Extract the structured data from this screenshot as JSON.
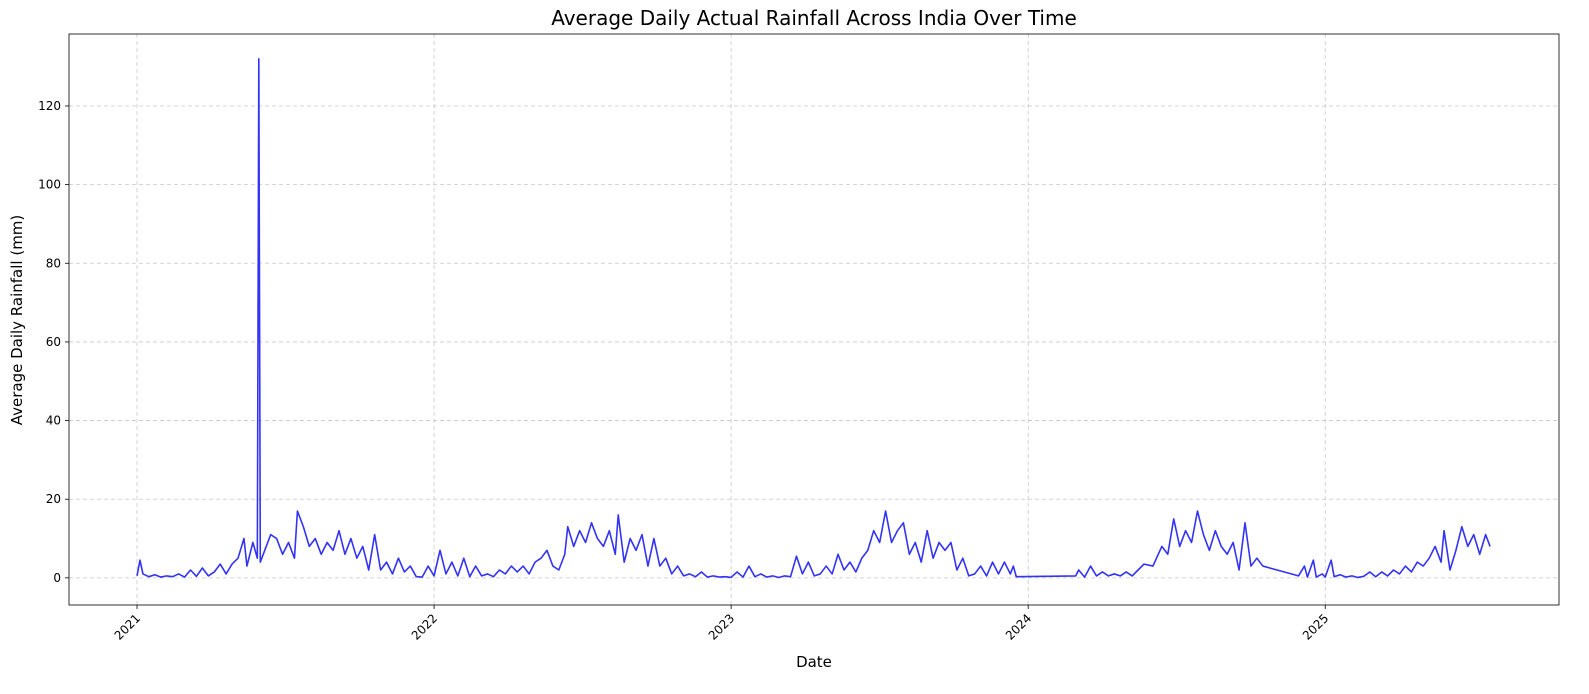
{
  "chart_data": {
    "type": "line",
    "title": "Average Daily Actual Rainfall Across India Over Time",
    "xlabel": "Date",
    "ylabel": "Average Daily Rainfall (mm)",
    "xlim": [
      2020.771,
      2025.787
    ],
    "xticks": [
      2021,
      2022,
      2023,
      2024,
      2025
    ],
    "ylim": [
      -6.9,
      138.3
    ],
    "yticks": [
      0,
      20,
      40,
      60,
      80,
      100,
      120
    ],
    "grid": true,
    "x": [
      2021.0,
      2021.01,
      2021.02,
      2021.04,
      2021.06,
      2021.08,
      2021.1,
      2021.12,
      2021.14,
      2021.16,
      2021.18,
      2021.2,
      2021.22,
      2021.24,
      2021.26,
      2021.28,
      2021.3,
      2021.32,
      2021.34,
      2021.36,
      2021.37,
      2021.39,
      2021.405,
      2021.41,
      2021.415,
      2021.43,
      2021.45,
      2021.47,
      2021.49,
      2021.51,
      2021.53,
      2021.54,
      2021.56,
      2021.58,
      2021.6,
      2021.62,
      2021.64,
      2021.66,
      2021.68,
      2021.7,
      2021.72,
      2021.74,
      2021.76,
      2021.78,
      2021.8,
      2021.82,
      2021.84,
      2021.86,
      2021.88,
      2021.9,
      2021.92,
      2021.94,
      2021.96,
      2021.98,
      2022.0,
      2022.02,
      2022.04,
      2022.06,
      2022.08,
      2022.1,
      2022.12,
      2022.14,
      2022.16,
      2022.18,
      2022.2,
      2022.22,
      2022.24,
      2022.26,
      2022.28,
      2022.3,
      2022.32,
      2022.34,
      2022.36,
      2022.38,
      2022.4,
      2022.42,
      2022.44,
      2022.45,
      2022.47,
      2022.49,
      2022.51,
      2022.53,
      2022.55,
      2022.57,
      2022.59,
      2022.61,
      2022.62,
      2022.64,
      2022.66,
      2022.68,
      2022.7,
      2022.72,
      2022.74,
      2022.76,
      2022.78,
      2022.8,
      2022.82,
      2022.84,
      2022.86,
      2022.88,
      2022.9,
      2022.92,
      2022.94,
      2022.96,
      2022.98,
      2023.0,
      2023.02,
      2023.04,
      2023.06,
      2023.08,
      2023.1,
      2023.12,
      2023.14,
      2023.16,
      2023.18,
      2023.2,
      2023.22,
      2023.24,
      2023.26,
      2023.28,
      2023.3,
      2023.32,
      2023.34,
      2023.36,
      2023.38,
      2023.4,
      2023.42,
      2023.44,
      2023.46,
      2023.48,
      2023.5,
      2023.52,
      2023.54,
      2023.56,
      2023.58,
      2023.6,
      2023.62,
      2023.64,
      2023.66,
      2023.68,
      2023.7,
      2023.72,
      2023.74,
      2023.76,
      2023.78,
      2023.8,
      2023.82,
      2023.84,
      2023.86,
      2023.88,
      2023.9,
      2023.92,
      2023.94,
      2023.95,
      2023.96,
      2024.16,
      2024.17,
      2024.19,
      2024.21,
      2024.23,
      2024.25,
      2024.27,
      2024.29,
      2024.31,
      2024.33,
      2024.35,
      2024.37,
      2024.39,
      2024.42,
      2024.45,
      2024.47,
      2024.49,
      2024.51,
      2024.53,
      2024.55,
      2024.57,
      2024.59,
      2024.61,
      2024.63,
      2024.65,
      2024.67,
      2024.69,
      2024.71,
      2024.73,
      2024.75,
      2024.77,
      2024.79,
      2024.91,
      2024.93,
      2024.94,
      2024.96,
      2024.97,
      2024.99,
      2025.0,
      2025.02,
      2025.03,
      2025.05,
      2025.07,
      2025.09,
      2025.11,
      2025.13,
      2025.15,
      2025.17,
      2025.19,
      2025.21,
      2025.23,
      2025.25,
      2025.27,
      2025.29,
      2025.31,
      2025.33,
      2025.35,
      2025.37,
      2025.39,
      2025.4,
      2025.42,
      2025.44,
      2025.46,
      2025.48,
      2025.5,
      2025.52,
      2025.54,
      2025.555
    ],
    "series": [
      {
        "color": "#3333f5",
        "values": [
          0.5,
          4.5,
          1,
          0.3,
          0.8,
          0.2,
          0.5,
          0.3,
          1,
          0.2,
          2,
          0.4,
          2.5,
          0.5,
          1.5,
          3.5,
          1,
          3.5,
          5,
          10,
          3,
          9,
          5,
          132,
          4,
          7,
          11,
          10,
          6,
          9,
          5,
          17,
          13,
          8,
          10,
          6,
          9,
          7,
          12,
          6,
          10,
          5,
          8,
          2,
          11,
          2,
          4,
          1,
          5,
          1.5,
          3,
          0.3,
          0.2,
          3,
          0.5,
          7,
          1,
          4,
          0.5,
          5,
          0.3,
          3,
          0.5,
          1,
          0.3,
          2,
          1,
          3,
          1.5,
          3,
          1,
          4,
          5,
          7,
          3,
          2,
          6,
          13,
          8,
          12,
          9,
          14,
          10,
          8,
          12,
          6,
          16,
          4,
          10,
          7,
          11,
          3,
          10,
          3,
          5,
          1,
          3,
          0.5,
          1,
          0.3,
          1.5,
          0.2,
          0.5,
          0.2,
          0.3,
          0.1,
          1.5,
          0.2,
          3,
          0.3,
          1,
          0.2,
          0.5,
          0.1,
          0.5,
          0.3,
          5.5,
          1,
          4,
          0.5,
          1,
          3,
          1,
          6,
          2,
          4,
          1.5,
          5,
          7,
          12,
          9,
          17,
          9,
          12,
          14,
          6,
          9,
          4,
          12,
          5,
          9,
          7,
          9,
          2,
          5,
          0.5,
          1,
          3,
          0.5,
          4,
          1,
          4,
          1,
          3,
          0.3,
          0.5,
          2,
          0.2,
          3,
          0.5,
          1.5,
          0.5,
          1,
          0.5,
          1.5,
          0.5,
          2,
          3.5,
          3,
          8,
          6,
          15,
          8,
          12,
          9,
          17,
          11,
          7,
          12,
          8,
          6,
          9,
          2,
          14,
          3,
          5,
          3,
          0.5,
          3,
          0.2,
          4.5,
          0.2,
          1,
          0.2,
          4.5,
          0.3,
          0.8,
          0.2,
          0.5,
          0.1,
          0.4,
          1.5,
          0.3,
          1.5,
          0.5,
          2,
          1,
          3,
          1.5,
          4,
          3,
          5,
          8,
          4,
          12,
          2,
          7,
          13,
          8,
          11,
          6,
          11,
          8
        ]
      }
    ]
  }
}
